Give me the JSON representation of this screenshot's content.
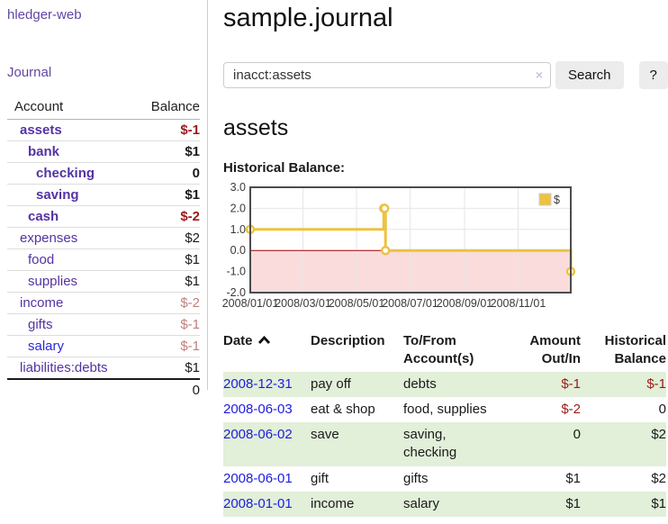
{
  "brand": {
    "label": "hledger-web"
  },
  "nav": {
    "journal": "Journal"
  },
  "sidebar": {
    "header": {
      "account": "Account",
      "balance": "Balance"
    },
    "accounts": [
      {
        "name": "assets",
        "indent": 1,
        "balance": "$-1",
        "matched": true
      },
      {
        "name": "bank",
        "indent": 2,
        "balance": "$1",
        "matched": true
      },
      {
        "name": "checking",
        "indent": 3,
        "balance": "0",
        "matched": true
      },
      {
        "name": "saving",
        "indent": 3,
        "balance": "$1",
        "matched": true
      },
      {
        "name": "cash",
        "indent": 2,
        "balance": "$-2",
        "matched": true
      },
      {
        "name": "expenses",
        "indent": 1,
        "balance": "$2",
        "matched": false
      },
      {
        "name": "food",
        "indent": 2,
        "balance": "$1",
        "matched": false
      },
      {
        "name": "supplies",
        "indent": 2,
        "balance": "$1",
        "matched": false
      },
      {
        "name": "income",
        "indent": 1,
        "balance": "$-2",
        "matched": false
      },
      {
        "name": "gifts",
        "indent": 2,
        "balance": "$-1",
        "matched": false
      },
      {
        "name": "salary",
        "indent": 2,
        "balance": "$-1",
        "matched": false,
        "link_tone": "blue"
      },
      {
        "name": "liabilities:debts",
        "indent": 1,
        "balance": "$1",
        "matched": false
      }
    ],
    "total": "0"
  },
  "main": {
    "title": "sample.journal",
    "search": {
      "value": "inacct:assets",
      "clear_icon": "×",
      "search_button": "Search",
      "help_button": "?"
    },
    "account_heading": "assets",
    "chart_title": "Historical Balance:"
  },
  "chart_data": {
    "type": "line",
    "title": "Historical Balance:",
    "series": [
      {
        "name": "$",
        "color": "#edc240",
        "steps": true,
        "points": [
          [
            "2008-01-01",
            1
          ],
          [
            "2008-06-01",
            2
          ],
          [
            "2008-06-02",
            2
          ],
          [
            "2008-06-03",
            0
          ],
          [
            "2008-12-31",
            -1
          ]
        ]
      }
    ],
    "ylim": [
      -2,
      3
    ],
    "y_ticks": [
      3.0,
      2.0,
      1.0,
      0.0,
      -1.0,
      -2.0
    ],
    "x_range": [
      "2008-01-01",
      "2008-12-31"
    ],
    "x_ticks": [
      "2008/01/01",
      "2008/03/01",
      "2008/05/01",
      "2008/07/01",
      "2008/09/01",
      "2008/11/01"
    ],
    "grid": true,
    "legend_position": "top-right",
    "negative_region_color": "#fadcdc",
    "zero_line_color": "#a00000",
    "border_color": "#4c4c4c",
    "gridline_color": "#e6e6e6"
  },
  "transactions": {
    "headers": [
      "Date",
      "Description",
      "To/From Account(s)",
      "Amount Out/In",
      "Historical Balance"
    ],
    "sort_icon": "chevron-up-icon",
    "rows": [
      {
        "date": "2008-12-31",
        "description": "pay off",
        "accounts": "debts",
        "amount": "$-1",
        "balance": "$-1"
      },
      {
        "date": "2008-06-03",
        "description": "eat & shop",
        "accounts": "food, supplies",
        "amount": "$-2",
        "balance": "0"
      },
      {
        "date": "2008-06-02",
        "description": "save",
        "accounts": "saving, checking",
        "amount": "0",
        "balance": "$2"
      },
      {
        "date": "2008-06-01",
        "description": "gift",
        "accounts": "gifts",
        "amount": "$1",
        "balance": "$2"
      },
      {
        "date": "2008-01-01",
        "description": "income",
        "accounts": "salary",
        "amount": "$1",
        "balance": "$1"
      }
    ]
  }
}
